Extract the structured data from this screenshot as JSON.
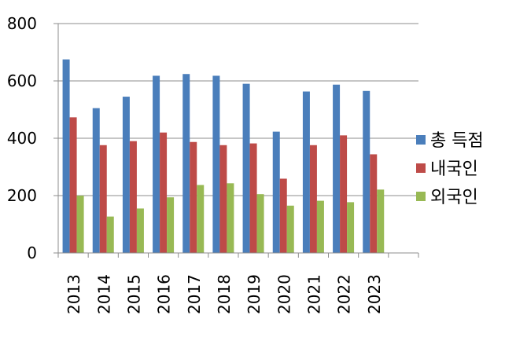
{
  "chart_data": {
    "type": "bar",
    "categories": [
      "2013",
      "2014",
      "2015",
      "2016",
      "2017",
      "2018",
      "2019",
      "2020",
      "2021",
      "2022",
      "2023"
    ],
    "series": [
      {
        "name": "총 득점",
        "color": "#4a7ebb",
        "values": [
          675,
          505,
          545,
          618,
          624,
          618,
          590,
          423,
          563,
          587,
          565
        ]
      },
      {
        "name": "내국인",
        "color": "#be4b48",
        "values": [
          473,
          376,
          390,
          420,
          387,
          376,
          382,
          259,
          376,
          410,
          344
        ]
      },
      {
        "name": "외국인",
        "color": "#98b954",
        "values": [
          200,
          127,
          155,
          194,
          237,
          243,
          205,
          165,
          182,
          177,
          221
        ]
      }
    ],
    "y_ticks": [
      "0",
      "200",
      "400",
      "600",
      "800"
    ],
    "ylim": [
      0,
      800
    ],
    "xlabel": "",
    "ylabel": "",
    "title": "",
    "grid": true,
    "legend_position": "right"
  }
}
